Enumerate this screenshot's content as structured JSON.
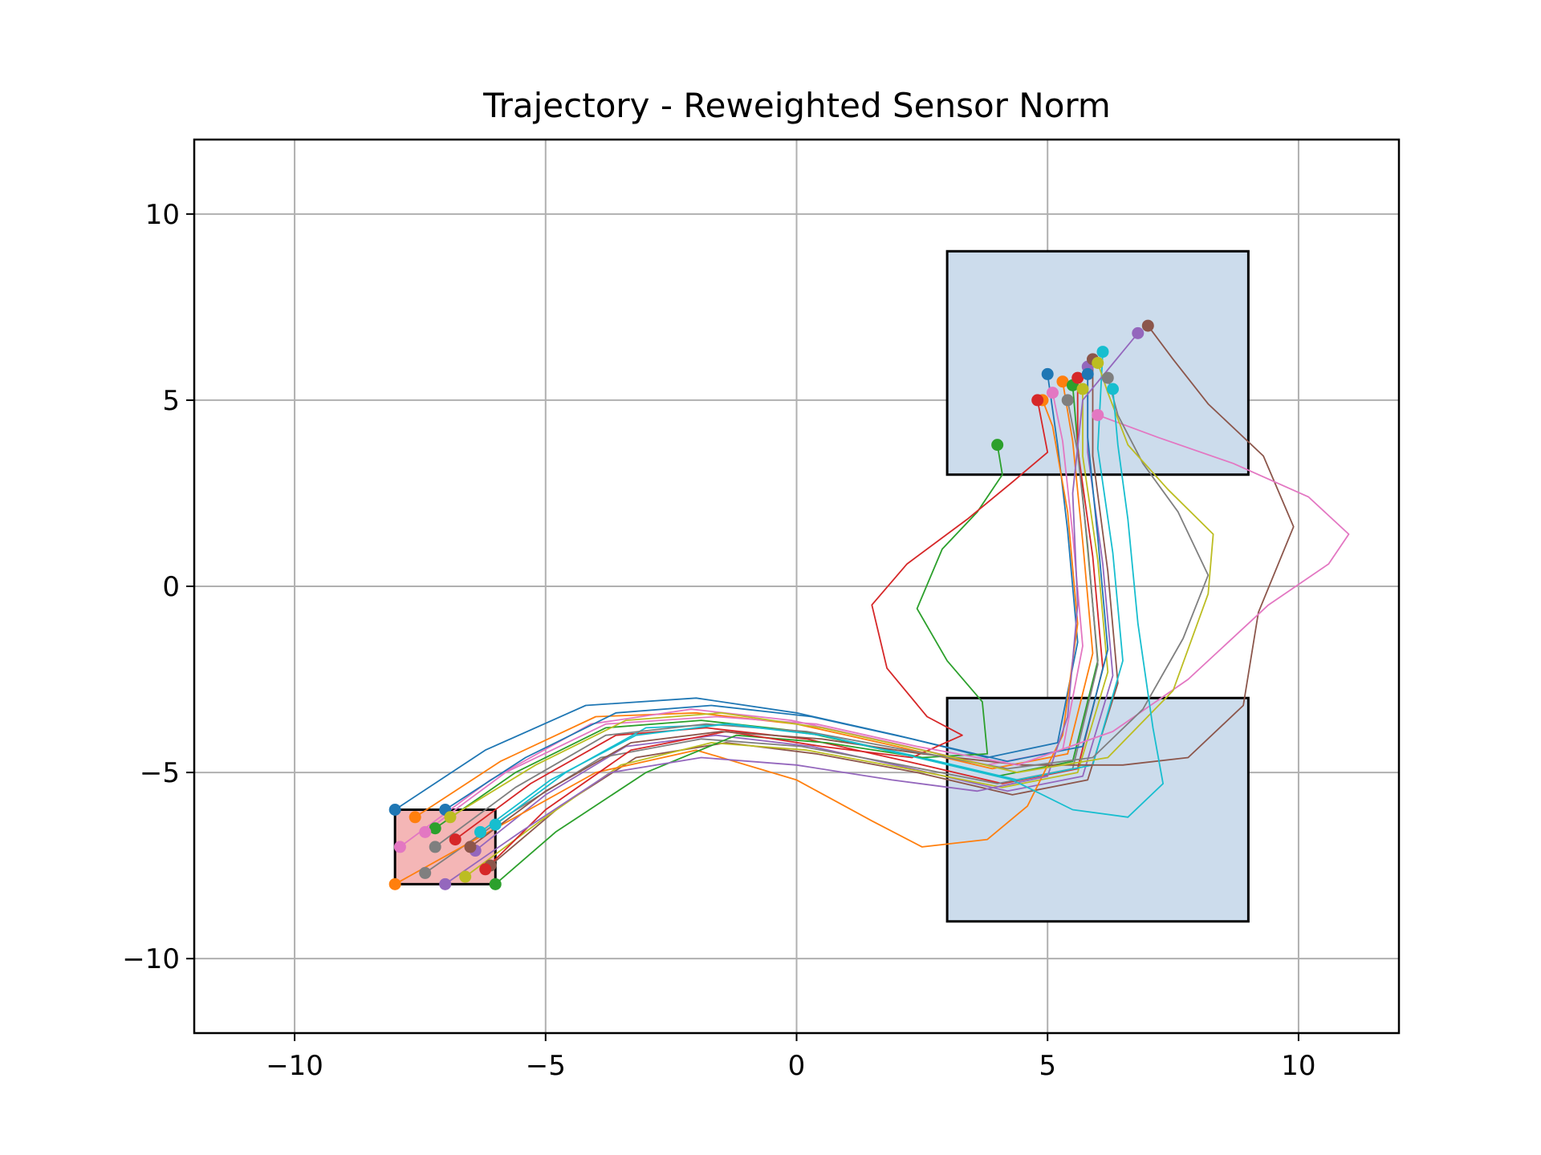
{
  "chart_data": {
    "type": "line",
    "title": "Trajectory - Reweighted Sensor Norm",
    "xlabel": "",
    "ylabel": "",
    "xlim": [
      -12,
      12
    ],
    "ylim": [
      -12,
      12
    ],
    "grid": true,
    "xticks": [
      -10,
      -5,
      0,
      5,
      10
    ],
    "yticks": [
      -10,
      -5,
      0,
      5,
      10
    ],
    "xtick_labels": [
      "−10",
      "−5",
      "0",
      "5",
      "10"
    ],
    "ytick_labels": [
      "−10",
      "−5",
      "0",
      "5",
      "10"
    ],
    "regions": [
      {
        "kind": "start",
        "x": [
          -8,
          -6
        ],
        "y": [
          -8,
          -6
        ],
        "fill": "#f4b6b6"
      },
      {
        "kind": "obstacle",
        "x": [
          3,
          9
        ],
        "y": [
          -9,
          -3
        ],
        "fill": "#ccdcec"
      },
      {
        "kind": "goal",
        "x": [
          3,
          9
        ],
        "y": [
          3,
          9
        ],
        "fill": "#ccdcec"
      }
    ],
    "palette": [
      "#1f77b4",
      "#ff7f0e",
      "#2ca02c",
      "#d62728",
      "#9467bd",
      "#8c564b",
      "#e377c2",
      "#7f7f7f",
      "#bcbd22",
      "#17becf"
    ],
    "series": [
      {
        "values": [
          [
            -8.0,
            -6.0
          ],
          [
            -6.2,
            -4.4
          ],
          [
            -4.2,
            -3.2
          ],
          [
            -2.0,
            -3.0
          ],
          [
            0.0,
            -3.4
          ],
          [
            2.0,
            -4.0
          ],
          [
            3.8,
            -4.6
          ],
          [
            5.2,
            -4.2
          ],
          [
            5.6,
            -1.5
          ],
          [
            5.4,
            1.5
          ],
          [
            5.2,
            3.8
          ],
          [
            5.0,
            5.7
          ]
        ]
      },
      {
        "values": [
          [
            -7.6,
            -6.2
          ],
          [
            -5.9,
            -4.7
          ],
          [
            -4.0,
            -3.5
          ],
          [
            -2.0,
            -3.4
          ],
          [
            0.0,
            -3.7
          ],
          [
            2.0,
            -4.3
          ],
          [
            3.9,
            -4.9
          ],
          [
            5.4,
            -4.5
          ],
          [
            5.9,
            -1.8
          ],
          [
            5.7,
            1.2
          ],
          [
            5.5,
            3.9
          ],
          [
            5.3,
            5.5
          ]
        ]
      },
      {
        "values": [
          [
            -7.2,
            -6.5
          ],
          [
            -5.6,
            -5.0
          ],
          [
            -3.8,
            -3.8
          ],
          [
            -1.9,
            -3.6
          ],
          [
            0.1,
            -3.9
          ],
          [
            2.1,
            -4.5
          ],
          [
            4.0,
            -5.1
          ],
          [
            5.5,
            -4.7
          ],
          [
            6.0,
            -2.0
          ],
          [
            5.8,
            1.0
          ],
          [
            5.6,
            3.8
          ],
          [
            5.5,
            5.4
          ]
        ]
      },
      {
        "values": [
          [
            -6.8,
            -6.8
          ],
          [
            -5.3,
            -5.3
          ],
          [
            -3.6,
            -4.0
          ],
          [
            -1.8,
            -3.8
          ],
          [
            0.2,
            -4.1
          ],
          [
            2.2,
            -4.7
          ],
          [
            4.1,
            -5.3
          ],
          [
            5.6,
            -4.9
          ],
          [
            6.1,
            -2.2
          ],
          [
            5.9,
            0.8
          ],
          [
            5.6,
            3.7
          ],
          [
            5.6,
            5.6
          ]
        ]
      },
      {
        "values": [
          [
            -6.4,
            -7.1
          ],
          [
            -5.0,
            -5.6
          ],
          [
            -3.4,
            -4.3
          ],
          [
            -1.6,
            -4.0
          ],
          [
            0.3,
            -4.3
          ],
          [
            2.3,
            -4.9
          ],
          [
            4.2,
            -5.5
          ],
          [
            5.7,
            -5.1
          ],
          [
            6.3,
            -2.4
          ],
          [
            6.1,
            0.6
          ],
          [
            5.8,
            3.6
          ],
          [
            5.8,
            5.9
          ]
        ]
      },
      {
        "values": [
          [
            -6.1,
            -7.5
          ],
          [
            -4.7,
            -5.9
          ],
          [
            -3.2,
            -4.6
          ],
          [
            -1.4,
            -4.2
          ],
          [
            0.4,
            -4.5
          ],
          [
            2.4,
            -5.0
          ],
          [
            4.3,
            -5.6
          ],
          [
            5.8,
            -5.2
          ],
          [
            6.4,
            -2.6
          ],
          [
            6.2,
            0.4
          ],
          [
            5.9,
            3.5
          ],
          [
            5.9,
            6.1
          ]
        ]
      },
      {
        "values": [
          [
            -7.9,
            -7.0
          ],
          [
            -6.1,
            -5.2
          ],
          [
            -4.1,
            -3.7
          ],
          [
            -2.1,
            -3.3
          ],
          [
            -0.1,
            -3.6
          ],
          [
            1.9,
            -4.2
          ],
          [
            3.8,
            -4.8
          ],
          [
            5.3,
            -4.4
          ],
          [
            5.7,
            -1.6
          ],
          [
            5.5,
            1.4
          ],
          [
            5.3,
            3.9
          ],
          [
            5.1,
            5.2
          ]
        ]
      },
      {
        "values": [
          [
            -7.4,
            -7.7
          ],
          [
            -5.7,
            -6.1
          ],
          [
            -3.9,
            -4.6
          ],
          [
            -1.9,
            -4.1
          ],
          [
            0.1,
            -4.3
          ],
          [
            2.1,
            -4.8
          ],
          [
            4.0,
            -5.3
          ],
          [
            5.5,
            -4.9
          ],
          [
            6.0,
            -2.1
          ],
          [
            5.8,
            1.1
          ],
          [
            5.6,
            3.6
          ],
          [
            5.4,
            5.0
          ]
        ]
      },
      {
        "values": [
          [
            -6.6,
            -7.8
          ],
          [
            -5.1,
            -6.3
          ],
          [
            -3.5,
            -4.8
          ],
          [
            -1.7,
            -4.2
          ],
          [
            0.2,
            -4.4
          ],
          [
            2.2,
            -4.9
          ],
          [
            4.1,
            -5.4
          ],
          [
            5.6,
            -5.0
          ],
          [
            6.2,
            -2.3
          ],
          [
            6.0,
            0.7
          ],
          [
            5.7,
            3.5
          ],
          [
            5.7,
            5.3
          ]
        ]
      },
      {
        "values": [
          [
            -6.0,
            -6.4
          ],
          [
            -4.6,
            -5.0
          ],
          [
            -3.0,
            -3.8
          ],
          [
            -1.3,
            -3.7
          ],
          [
            0.5,
            -4.0
          ],
          [
            2.5,
            -4.6
          ],
          [
            4.4,
            -5.2
          ],
          [
            5.9,
            -4.8
          ],
          [
            6.5,
            -2.0
          ],
          [
            6.3,
            0.9
          ],
          [
            6.0,
            3.7
          ],
          [
            6.1,
            6.3
          ]
        ]
      },
      {
        "values": [
          [
            -7.0,
            -6.0
          ],
          [
            -5.4,
            -4.6
          ],
          [
            -3.6,
            -3.4
          ],
          [
            -1.7,
            -3.2
          ],
          [
            0.3,
            -3.5
          ],
          [
            2.3,
            -4.1
          ],
          [
            4.2,
            -4.7
          ],
          [
            5.7,
            -4.3
          ],
          [
            6.2,
            -1.7
          ],
          [
            6.0,
            1.3
          ],
          [
            5.8,
            4.0
          ],
          [
            5.8,
            5.7
          ]
        ]
      },
      {
        "values": [
          [
            -8.0,
            -8.0
          ],
          [
            -6.0,
            -6.5
          ],
          [
            -4.0,
            -5.0
          ],
          [
            -2.0,
            -4.4
          ],
          [
            0.0,
            -5.2
          ],
          [
            1.5,
            -6.3
          ],
          [
            2.5,
            -7.0
          ],
          [
            3.8,
            -6.8
          ],
          [
            4.6,
            -5.9
          ],
          [
            5.3,
            -4.0
          ],
          [
            5.6,
            -1.0
          ],
          [
            5.4,
            2.0
          ],
          [
            5.1,
            4.3
          ],
          [
            4.9,
            5.0
          ]
        ]
      },
      {
        "values": [
          [
            -6.0,
            -8.0
          ],
          [
            -4.8,
            -6.6
          ],
          [
            -3.0,
            -5.0
          ],
          [
            -1.2,
            -4.0
          ],
          [
            0.6,
            -4.2
          ],
          [
            2.5,
            -4.6
          ],
          [
            3.8,
            -4.5
          ],
          [
            3.7,
            -3.1
          ],
          [
            3.0,
            -2.0
          ],
          [
            2.4,
            -0.6
          ],
          [
            2.9,
            1.0
          ],
          [
            3.6,
            2.0
          ],
          [
            4.1,
            3.0
          ],
          [
            4.0,
            3.8
          ]
        ]
      },
      {
        "values": [
          [
            -6.2,
            -7.6
          ],
          [
            -5.0,
            -6.0
          ],
          [
            -3.3,
            -4.4
          ],
          [
            -1.4,
            -3.9
          ],
          [
            0.5,
            -4.3
          ],
          [
            2.3,
            -4.6
          ],
          [
            3.3,
            -4.0
          ],
          [
            2.6,
            -3.5
          ],
          [
            1.8,
            -2.2
          ],
          [
            1.5,
            -0.5
          ],
          [
            2.2,
            0.6
          ],
          [
            3.4,
            1.8
          ],
          [
            4.3,
            2.8
          ],
          [
            5.0,
            3.6
          ],
          [
            4.8,
            5.0
          ]
        ]
      },
      {
        "values": [
          [
            -7.0,
            -8.0
          ],
          [
            -5.5,
            -6.6
          ],
          [
            -3.7,
            -5.0
          ],
          [
            -1.9,
            -4.6
          ],
          [
            0.0,
            -4.8
          ],
          [
            1.9,
            -5.2
          ],
          [
            3.6,
            -5.5
          ],
          [
            5.0,
            -5.1
          ],
          [
            5.4,
            -3.5
          ],
          [
            5.6,
            -0.5
          ],
          [
            5.5,
            2.5
          ],
          [
            5.7,
            5.0
          ],
          [
            6.8,
            6.8
          ]
        ]
      },
      {
        "values": [
          [
            -6.5,
            -7.0
          ],
          [
            -5.0,
            -5.5
          ],
          [
            -3.3,
            -4.2
          ],
          [
            -1.5,
            -3.9
          ],
          [
            0.5,
            -4.1
          ],
          [
            2.5,
            -4.5
          ],
          [
            4.5,
            -4.8
          ],
          [
            6.5,
            -4.8
          ],
          [
            7.8,
            -4.6
          ],
          [
            8.9,
            -3.2
          ],
          [
            9.2,
            -0.7
          ],
          [
            9.9,
            1.6
          ],
          [
            9.3,
            3.5
          ],
          [
            8.2,
            4.9
          ],
          [
            7.5,
            6.1
          ],
          [
            7.0,
            7.0
          ]
        ]
      },
      {
        "values": [
          [
            -7.4,
            -6.6
          ],
          [
            -5.8,
            -5.0
          ],
          [
            -3.8,
            -3.7
          ],
          [
            -1.6,
            -3.5
          ],
          [
            0.4,
            -3.7
          ],
          [
            2.4,
            -4.3
          ],
          [
            4.4,
            -4.8
          ],
          [
            6.3,
            -3.9
          ],
          [
            7.8,
            -2.5
          ],
          [
            9.4,
            -0.5
          ],
          [
            10.6,
            0.6
          ],
          [
            11.0,
            1.4
          ],
          [
            10.2,
            2.4
          ],
          [
            8.7,
            3.3
          ],
          [
            7.2,
            4.0
          ],
          [
            6.0,
            4.6
          ]
        ]
      },
      {
        "values": [
          [
            -7.2,
            -7.0
          ],
          [
            -5.6,
            -5.4
          ],
          [
            -3.8,
            -4.0
          ],
          [
            -1.8,
            -3.7
          ],
          [
            0.2,
            -3.9
          ],
          [
            2.2,
            -4.4
          ],
          [
            4.2,
            -4.9
          ],
          [
            5.9,
            -4.6
          ],
          [
            6.9,
            -3.3
          ],
          [
            7.7,
            -1.4
          ],
          [
            8.2,
            0.3
          ],
          [
            7.6,
            2.0
          ],
          [
            6.9,
            3.3
          ],
          [
            6.4,
            4.6
          ],
          [
            6.2,
            5.6
          ]
        ]
      },
      {
        "values": [
          [
            -6.9,
            -6.2
          ],
          [
            -5.2,
            -4.8
          ],
          [
            -3.4,
            -3.6
          ],
          [
            -1.5,
            -3.4
          ],
          [
            0.5,
            -3.8
          ],
          [
            2.5,
            -4.4
          ],
          [
            4.4,
            -5.0
          ],
          [
            6.2,
            -4.6
          ],
          [
            7.5,
            -2.8
          ],
          [
            8.2,
            -0.2
          ],
          [
            8.3,
            1.4
          ],
          [
            7.4,
            2.6
          ],
          [
            6.6,
            3.8
          ],
          [
            6.2,
            5.2
          ],
          [
            6.0,
            6.0
          ]
        ]
      },
      {
        "values": [
          [
            -6.3,
            -6.6
          ],
          [
            -4.9,
            -5.2
          ],
          [
            -3.2,
            -4.0
          ],
          [
            -1.4,
            -3.7
          ],
          [
            0.5,
            -4.0
          ],
          [
            2.4,
            -4.6
          ],
          [
            4.3,
            -5.2
          ],
          [
            5.5,
            -6.0
          ],
          [
            6.6,
            -6.2
          ],
          [
            7.3,
            -5.3
          ],
          [
            7.1,
            -3.8
          ],
          [
            6.8,
            -1.0
          ],
          [
            6.6,
            1.8
          ],
          [
            6.4,
            3.8
          ],
          [
            6.3,
            5.3
          ]
        ]
      }
    ]
  }
}
